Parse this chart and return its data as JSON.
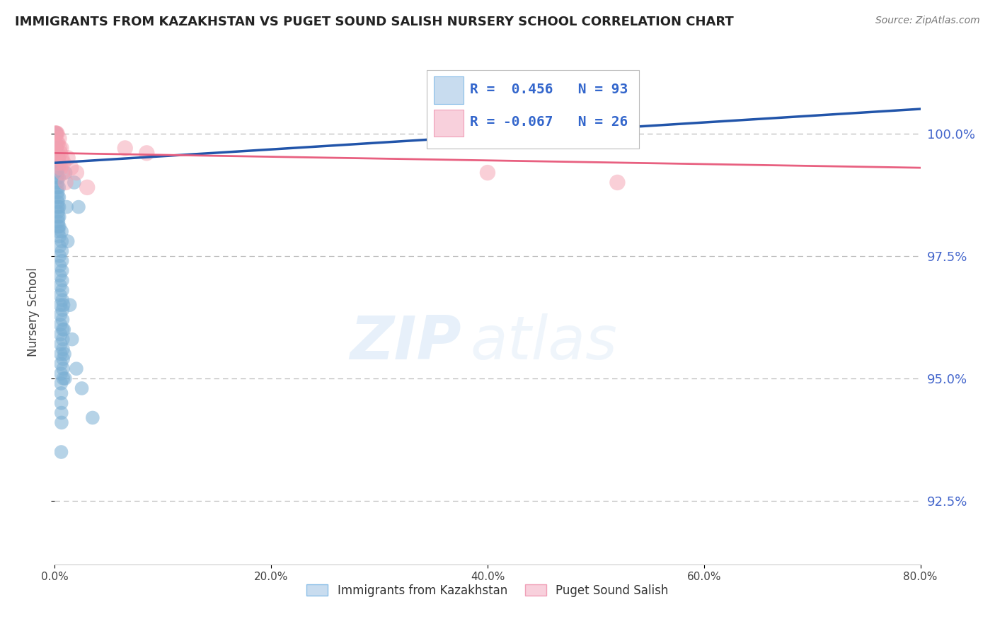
{
  "title": "IMMIGRANTS FROM KAZAKHSTAN VS PUGET SOUND SALISH NURSERY SCHOOL CORRELATION CHART",
  "source": "Source: ZipAtlas.com",
  "ylabel": "Nursery School",
  "xlim": [
    0.0,
    80.0
  ],
  "ylim": [
    91.2,
    101.5
  ],
  "yticks": [
    92.5,
    95.0,
    97.5,
    100.0
  ],
  "xticks": [
    0.0,
    20.0,
    40.0,
    60.0,
    80.0
  ],
  "blue_r": 0.456,
  "blue_n": 93,
  "pink_r": -0.067,
  "pink_n": 26,
  "legend_labels": [
    "Immigrants from Kazakhstan",
    "Puget Sound Salish"
  ],
  "blue_color": "#7BAFD4",
  "pink_color": "#F4A0B0",
  "blue_line_color": "#2255AA",
  "pink_line_color": "#E86080",
  "watermark_zip": "ZIP",
  "watermark_atlas": "atlas",
  "blue_dots": [
    [
      0.02,
      100.0
    ],
    [
      0.03,
      100.0
    ],
    [
      0.04,
      100.0
    ],
    [
      0.05,
      100.0
    ],
    [
      0.06,
      100.0
    ],
    [
      0.07,
      100.0
    ],
    [
      0.08,
      100.0
    ],
    [
      0.09,
      100.0
    ],
    [
      0.1,
      100.0
    ],
    [
      0.11,
      100.0
    ],
    [
      0.12,
      100.0
    ],
    [
      0.13,
      100.0
    ],
    [
      0.14,
      100.0
    ],
    [
      0.15,
      100.0
    ],
    [
      0.16,
      100.0
    ],
    [
      0.17,
      99.8
    ],
    [
      0.18,
      99.7
    ],
    [
      0.19,
      99.6
    ],
    [
      0.2,
      99.5
    ],
    [
      0.21,
      99.4
    ],
    [
      0.22,
      99.3
    ],
    [
      0.23,
      99.2
    ],
    [
      0.24,
      99.1
    ],
    [
      0.25,
      99.0
    ],
    [
      0.26,
      98.9
    ],
    [
      0.27,
      98.8
    ],
    [
      0.28,
      98.7
    ],
    [
      0.29,
      98.6
    ],
    [
      0.3,
      98.5
    ],
    [
      0.31,
      98.4
    ],
    [
      0.32,
      98.3
    ],
    [
      0.33,
      98.2
    ],
    [
      0.34,
      98.1
    ],
    [
      0.35,
      98.0
    ],
    [
      0.36,
      99.5
    ],
    [
      0.37,
      99.3
    ],
    [
      0.38,
      99.1
    ],
    [
      0.39,
      98.9
    ],
    [
      0.4,
      98.7
    ],
    [
      0.41,
      98.5
    ],
    [
      0.42,
      98.3
    ],
    [
      0.43,
      98.1
    ],
    [
      0.44,
      97.9
    ],
    [
      0.45,
      97.7
    ],
    [
      0.46,
      97.5
    ],
    [
      0.47,
      97.3
    ],
    [
      0.48,
      97.1
    ],
    [
      0.49,
      96.9
    ],
    [
      0.5,
      96.7
    ],
    [
      0.51,
      96.5
    ],
    [
      0.52,
      96.3
    ],
    [
      0.53,
      96.1
    ],
    [
      0.54,
      95.9
    ],
    [
      0.55,
      95.7
    ],
    [
      0.56,
      95.5
    ],
    [
      0.57,
      95.3
    ],
    [
      0.58,
      95.1
    ],
    [
      0.59,
      94.9
    ],
    [
      0.6,
      94.7
    ],
    [
      0.61,
      94.5
    ],
    [
      0.62,
      94.3
    ],
    [
      0.63,
      94.1
    ],
    [
      0.64,
      98.0
    ],
    [
      0.65,
      97.8
    ],
    [
      0.66,
      97.6
    ],
    [
      0.67,
      97.4
    ],
    [
      0.68,
      97.2
    ],
    [
      0.69,
      97.0
    ],
    [
      0.7,
      96.8
    ],
    [
      0.71,
      96.6
    ],
    [
      0.72,
      96.4
    ],
    [
      0.73,
      96.2
    ],
    [
      0.74,
      96.0
    ],
    [
      0.75,
      95.8
    ],
    [
      0.76,
      95.6
    ],
    [
      0.77,
      95.4
    ],
    [
      0.78,
      95.2
    ],
    [
      0.79,
      95.0
    ],
    [
      0.8,
      96.5
    ],
    [
      0.85,
      96.0
    ],
    [
      0.9,
      95.5
    ],
    [
      0.95,
      95.0
    ],
    [
      1.0,
      99.2
    ],
    [
      1.1,
      98.5
    ],
    [
      1.2,
      97.8
    ],
    [
      1.4,
      96.5
    ],
    [
      1.6,
      95.8
    ],
    [
      2.0,
      95.2
    ],
    [
      2.5,
      94.8
    ],
    [
      3.5,
      94.2
    ],
    [
      1.8,
      99.0
    ],
    [
      2.2,
      98.5
    ],
    [
      0.6,
      93.5
    ]
  ],
  "pink_dots": [
    [
      0.05,
      100.0
    ],
    [
      0.1,
      100.0
    ],
    [
      0.15,
      100.0
    ],
    [
      0.2,
      100.0
    ],
    [
      0.22,
      99.8
    ],
    [
      0.25,
      99.6
    ],
    [
      0.28,
      99.8
    ],
    [
      0.3,
      99.5
    ],
    [
      0.35,
      99.4
    ],
    [
      0.4,
      99.9
    ],
    [
      0.45,
      99.7
    ],
    [
      0.5,
      99.6
    ],
    [
      0.55,
      99.3
    ],
    [
      0.6,
      99.7
    ],
    [
      0.65,
      99.5
    ],
    [
      0.7,
      99.2
    ],
    [
      0.8,
      99.4
    ],
    [
      1.0,
      99.0
    ],
    [
      1.2,
      99.5
    ],
    [
      1.5,
      99.3
    ],
    [
      2.0,
      99.2
    ],
    [
      3.0,
      98.9
    ],
    [
      6.5,
      99.7
    ],
    [
      8.5,
      99.6
    ],
    [
      40.0,
      99.2
    ],
    [
      52.0,
      99.0
    ]
  ],
  "blue_trendline": [
    [
      0.0,
      99.4
    ],
    [
      80.0,
      100.5
    ]
  ],
  "pink_trendline": [
    [
      0.0,
      99.6
    ],
    [
      80.0,
      99.3
    ]
  ]
}
